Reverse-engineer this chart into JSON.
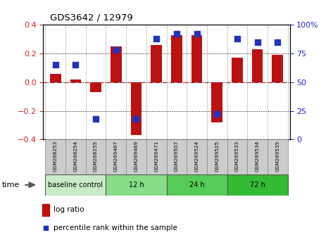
{
  "title": "GDS3642 / 12979",
  "samples": [
    "GSM268253",
    "GSM268254",
    "GSM268255",
    "GSM269467",
    "GSM269469",
    "GSM269471",
    "GSM269507",
    "GSM269524",
    "GSM269525",
    "GSM269533",
    "GSM269534",
    "GSM269535"
  ],
  "log_ratio": [
    0.06,
    0.02,
    -0.07,
    0.25,
    -0.37,
    0.26,
    0.33,
    0.33,
    -0.28,
    0.17,
    0.23,
    0.19
  ],
  "percentile_rank": [
    65,
    65,
    18,
    78,
    18,
    88,
    92,
    92,
    22,
    88,
    85,
    85
  ],
  "ylim": [
    -0.4,
    0.4
  ],
  "yticks_left": [
    -0.4,
    -0.2,
    0.0,
    0.2,
    0.4
  ],
  "yticks_right": [
    0,
    25,
    50,
    75,
    100
  ],
  "bar_color": "#bb1111",
  "dot_color": "#2233bb",
  "groups": [
    {
      "label": "baseline control",
      "start": 0,
      "end": 3,
      "color": "#c8ecc8"
    },
    {
      "label": "12 h",
      "start": 3,
      "end": 6,
      "color": "#88dd88"
    },
    {
      "label": "24 h",
      "start": 6,
      "end": 9,
      "color": "#55cc55"
    },
    {
      "label": "72 h",
      "start": 9,
      "end": 12,
      "color": "#33bb33"
    }
  ],
  "legend_bar_label": "log ratio",
  "legend_dot_label": "percentile rank within the sample",
  "background_color": "#ffffff",
  "tick_color_left": "#cc2222",
  "tick_color_right": "#2222cc",
  "bar_width": 0.55,
  "dot_size": 28,
  "cell_color": "#cccccc",
  "cell_border_color": "#888888"
}
